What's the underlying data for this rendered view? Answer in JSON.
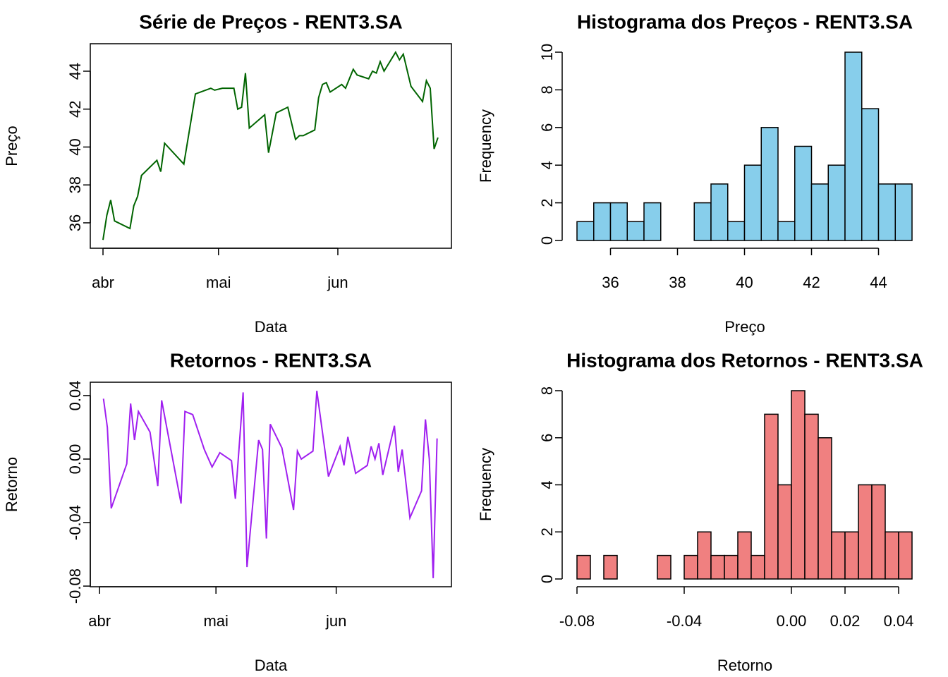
{
  "chart_data": [
    {
      "type": "line",
      "title": "Série de Preços - RENT3.SA",
      "xlabel": "Data",
      "ylabel": "Preço",
      "color": "#006400",
      "frame": true,
      "x": [
        0,
        1,
        2,
        3,
        7,
        8,
        9,
        10,
        14,
        15,
        16,
        21,
        24,
        28,
        29,
        31,
        34,
        35,
        36,
        37,
        38,
        42,
        43,
        45,
        48,
        50,
        51,
        52,
        55,
        56,
        57,
        58,
        59,
        62,
        63,
        65,
        66,
        69,
        70,
        71,
        72,
        73,
        76,
        77,
        78,
        80,
        83,
        84,
        85,
        86,
        87
      ],
      "values": [
        35.1,
        36.4,
        37.2,
        36.1,
        35.7,
        36.9,
        37.4,
        38.5,
        39.3,
        38.7,
        40.2,
        39.1,
        42.8,
        43.1,
        43.0,
        43.1,
        43.1,
        42.0,
        42.1,
        43.9,
        41.0,
        41.7,
        39.7,
        41.8,
        42.1,
        40.4,
        40.6,
        40.6,
        40.9,
        42.6,
        43.3,
        43.4,
        42.9,
        43.3,
        43.1,
        44.1,
        43.8,
        43.6,
        44.0,
        43.9,
        44.5,
        44.0,
        45.0,
        44.6,
        44.9,
        43.2,
        42.4,
        43.5,
        43.1,
        39.9,
        40.5
      ],
      "xlim": [
        -3.3,
        90.5
      ],
      "xticks": [
        {
          "value": 0,
          "label": "abr"
        },
        {
          "value": 30,
          "label": "mai"
        },
        {
          "value": 61,
          "label": "jun"
        }
      ],
      "ylim": [
        34.66,
        45.45
      ],
      "yticks": [
        36,
        38,
        40,
        42,
        44
      ]
    },
    {
      "type": "histogram",
      "title": "Histograma dos Preços - RENT3.SA",
      "xlabel": "Preço",
      "ylabel": "Frequency",
      "color": "#87ceeb",
      "bins": [
        35,
        35.5,
        36,
        36.5,
        37,
        37.5,
        38,
        38.5,
        39,
        39.5,
        40,
        40.5,
        41,
        41.5,
        42,
        42.5,
        43,
        43.5,
        44,
        44.5,
        45
      ],
      "values": [
        1,
        2,
        2,
        1,
        2,
        0,
        0,
        2,
        3,
        1,
        4,
        6,
        1,
        5,
        3,
        4,
        10,
        7,
        3,
        3
      ],
      "xlim": [
        35,
        45
      ],
      "xticks": [
        36,
        38,
        40,
        42,
        44
      ],
      "ylim": [
        0,
        10
      ],
      "yticks": [
        0,
        2,
        4,
        6,
        8,
        10
      ]
    },
    {
      "type": "line",
      "title": "Retornos - RENT3.SA",
      "xlabel": "Data",
      "ylabel": "Retorno",
      "color": "#a020f0",
      "frame": true,
      "x": [
        1,
        2,
        3,
        7,
        8,
        9,
        10,
        13,
        15,
        16,
        21,
        22,
        24,
        27,
        29,
        31,
        34,
        35,
        37,
        38,
        41,
        42,
        43,
        44,
        47,
        50,
        51,
        52,
        55,
        56,
        59,
        62,
        63,
        64,
        66,
        69,
        70,
        71,
        72,
        73,
        76,
        77,
        78,
        80,
        83,
        84,
        85,
        86,
        87
      ],
      "values": [
        0.038,
        0.02,
        -0.031,
        -0.003,
        0.035,
        0.012,
        0.03,
        0.017,
        -0.017,
        0.037,
        -0.028,
        0.03,
        0.028,
        0.006,
        -0.005,
        0.004,
        -0.001,
        -0.025,
        0.042,
        -0.068,
        0.012,
        0.006,
        -0.05,
        0.022,
        0.007,
        -0.032,
        0.005,
        0.0,
        0.005,
        0.043,
        -0.011,
        0.008,
        -0.004,
        0.014,
        -0.009,
        -0.004,
        0.008,
        0.0,
        0.01,
        -0.01,
        0.021,
        -0.008,
        0.006,
        -0.037,
        -0.02,
        0.025,
        0.0,
        -0.075,
        0.013
      ],
      "xlim": [
        -2.4,
        90.7
      ],
      "xticks": [
        {
          "value": 0,
          "label": "abr"
        },
        {
          "value": 30,
          "label": "mai"
        },
        {
          "value": 61,
          "label": "jun"
        }
      ],
      "ylim": [
        -0.0804,
        0.0484
      ],
      "yticks": [
        -0.08,
        -0.04,
        {
          "value": 0,
          "label": "0.00"
        },
        0.04
      ]
    },
    {
      "type": "histogram",
      "title": "Histograma dos Retornos - RENT3.SA",
      "xlabel": "Retorno",
      "ylabel": "Frequency",
      "color": "#f08080",
      "bins": [
        -0.08,
        -0.075,
        -0.07,
        -0.065,
        -0.06,
        -0.055,
        -0.05,
        -0.045,
        -0.04,
        -0.035,
        -0.03,
        -0.025,
        -0.02,
        -0.015,
        -0.01,
        -0.005,
        0,
        0.005,
        0.01,
        0.015,
        0.02,
        0.025,
        0.03,
        0.035,
        0.04,
        0.045
      ],
      "values": [
        1,
        0,
        1,
        0,
        0,
        0,
        1,
        0,
        1,
        2,
        1,
        1,
        2,
        1,
        7,
        4,
        8,
        7,
        6,
        2,
        2,
        4,
        4,
        2,
        2
      ],
      "xlim": [
        -0.08,
        0.045
      ],
      "xticks": [
        -0.08,
        -0.04,
        {
          "value": 0,
          "label": "0.00"
        },
        0.02,
        0.04
      ],
      "ylim": [
        0,
        8
      ],
      "yticks": [
        0,
        2,
        4,
        6,
        8
      ]
    }
  ]
}
